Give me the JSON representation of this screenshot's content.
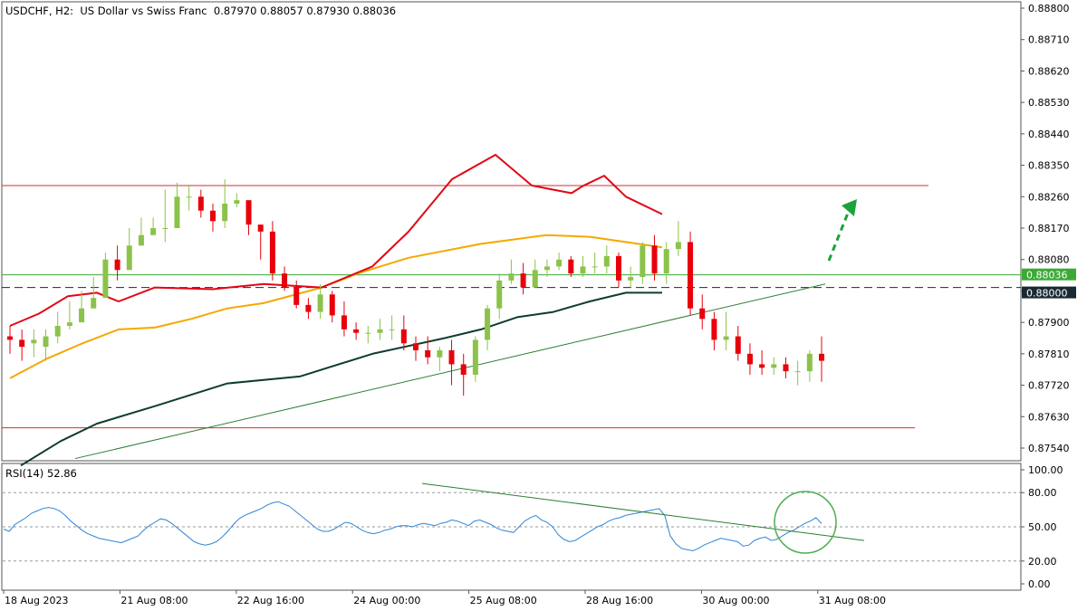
{
  "header": {
    "symbol": "USDCHF, H2:",
    "description": "US Dollar vs Swiss Franc",
    "ohlc": "0.87970 0.88057 0.87930 0.88036"
  },
  "rsi_panel": {
    "label": "RSI(14) 52.86"
  },
  "colors": {
    "bull": "#8bc34a",
    "bear": "#e8000b",
    "ma_red": "#e30613",
    "ma_orange": "#f5a800",
    "ma_dark": "#0f3d2e",
    "level": "#d32f2f",
    "trend": "#2e7d32",
    "rsi": "#2f86d6",
    "bid": "#3aaa35",
    "arrow": "#1aa33a"
  },
  "chart_data": [
    {
      "type": "candlestick",
      "title": "USDCHF, H2: US Dollar vs Swiss Franc",
      "y_range": [
        0.8748,
        0.8882
      ],
      "price_ticks": [
        "0.88800",
        "0.88710",
        "0.88620",
        "0.88530",
        "0.88440",
        "0.88350",
        "0.88260",
        "0.88170",
        "0.88080",
        "0.87990",
        "0.87900",
        "0.87810",
        "0.87720",
        "0.87630",
        "0.87540"
      ],
      "time_labels": [
        "18 Aug 2023",
        "21 Aug 08:00",
        "22 Aug 16:00",
        "24 Aug 00:00",
        "25 Aug 08:00",
        "28 Aug 16:00",
        "30 Aug 00:00",
        "31 Aug 08:00"
      ],
      "current_price": "0.88036",
      "dashed_level": "0.88000",
      "horizontal_levels": [
        0.88292,
        0.87598
      ],
      "trendline": [
        {
          "bar": 18,
          "price": 0.8751
        },
        {
          "bar": 225,
          "price": 0.8801
        }
      ],
      "forecast_arrow": "up",
      "moving_averages": {
        "red": [
          [
            0,
            0.8789
          ],
          [
            8,
            0.87925
          ],
          [
            16,
            0.87975
          ],
          [
            24,
            0.87985
          ],
          [
            30,
            0.8796
          ],
          [
            40,
            0.88
          ],
          [
            56,
            0.87995
          ],
          [
            70,
            0.8801
          ],
          [
            86,
            0.88
          ],
          [
            100,
            0.8806
          ],
          [
            110,
            0.8816
          ],
          [
            122,
            0.8831
          ],
          [
            134,
            0.8838
          ],
          [
            144,
            0.88292
          ],
          [
            150,
            0.8828
          ],
          [
            155,
            0.8827
          ],
          [
            158,
            0.8829
          ],
          [
            164,
            0.8832
          ],
          [
            170,
            0.8826
          ],
          [
            180,
            0.8821
          ]
        ],
        "orange": [
          [
            0,
            0.8774
          ],
          [
            10,
            0.87795
          ],
          [
            20,
            0.8784
          ],
          [
            30,
            0.8788
          ],
          [
            40,
            0.87885
          ],
          [
            50,
            0.8791
          ],
          [
            60,
            0.8794
          ],
          [
            70,
            0.87955
          ],
          [
            86,
            0.88
          ],
          [
            96,
            0.8804
          ],
          [
            110,
            0.88085
          ],
          [
            130,
            0.88125
          ],
          [
            148,
            0.8815
          ],
          [
            160,
            0.88145
          ],
          [
            170,
            0.8813
          ],
          [
            180,
            0.88115
          ]
        ],
        "dark": [
          [
            3,
            0.8749
          ],
          [
            14,
            0.8756
          ],
          [
            24,
            0.8761
          ],
          [
            40,
            0.8766
          ],
          [
            60,
            0.87725
          ],
          [
            80,
            0.87745
          ],
          [
            100,
            0.8781
          ],
          [
            120,
            0.87855
          ],
          [
            130,
            0.8788
          ],
          [
            140,
            0.87915
          ],
          [
            150,
            0.8793
          ],
          [
            160,
            0.8796
          ],
          [
            170,
            0.87985
          ],
          [
            180,
            0.87985
          ]
        ]
      },
      "candles": [
        [
          0.8786,
          0.8785,
          0.8784,
          0.8783,
          0.8786,
          0.8789,
          0.879,
          0.8794,
          0.8797,
          0.8808,
          0.8805,
          0.8812,
          0.8815,
          0.8817,
          0.8817,
          0.8826,
          0.8826,
          0.8822,
          0.8819,
          0.8824,
          0.8825,
          0.8818
        ],
        [
          0.8785,
          0.8783,
          0.8785,
          0.8786,
          0.8789,
          0.879,
          0.8794,
          0.8797,
          0.8808,
          0.8805,
          0.8812,
          0.8815,
          0.8817,
          0.8817,
          0.8826,
          0.8826,
          0.8822,
          0.8819,
          0.8824,
          0.8825,
          0.8818,
          0.8816
        ],
        [
          0.8789,
          0.8788,
          0.8788,
          0.8788,
          0.8793,
          0.8796,
          0.8799,
          0.8803,
          0.881,
          0.8812,
          0.8817,
          0.882,
          0.882,
          0.8828,
          0.883,
          0.8829,
          0.8828,
          0.8824,
          0.8831,
          0.8827,
          0.8823,
          0.8818
        ],
        [
          0.8781,
          0.8779,
          0.878,
          0.8779,
          0.8784,
          0.8788,
          0.8791,
          0.8795,
          0.8804,
          0.8802,
          0.8809,
          0.8812,
          0.8815,
          0.8813,
          0.8823,
          0.8822,
          0.882,
          0.8816,
          0.8817,
          0.8823,
          0.8815,
          0.8808
        ]
      ],
      "candles_cont": [
        [
          0.8816,
          0.8804,
          0.88,
          0.8795,
          0.8793,
          0.8798,
          0.8792,
          0.8788,
          0.8787,
          0.8787,
          0.8788,
          0.8788,
          0.8784,
          0.8782,
          0.878,
          0.8782,
          0.8778,
          0.8775,
          0.8785,
          0.8794,
          0.8802,
          0.8804,
          0.88,
          0.8805,
          0.8806,
          0.8808,
          0.8804,
          0.8806,
          0.8806,
          0.8809,
          0.8802,
          0.8803,
          0.8812,
          0.8804,
          0.8811,
          0.8813,
          0.8794,
          0.8791,
          0.8785,
          0.8786,
          0.8781,
          0.8778,
          0.8777,
          0.8778,
          0.8776,
          0.8776,
          0.8781
        ],
        [
          0.8804,
          0.88,
          0.8795,
          0.8793,
          0.8798,
          0.8792,
          0.8788,
          0.8787,
          0.8787,
          0.8788,
          0.8788,
          0.8784,
          0.8782,
          0.878,
          0.8782,
          0.8778,
          0.8775,
          0.8785,
          0.8794,
          0.8802,
          0.8804,
          0.88,
          0.8805,
          0.8806,
          0.8808,
          0.8804,
          0.8806,
          0.8806,
          0.8809,
          0.8802,
          0.8803,
          0.8812,
          0.8804,
          0.8811,
          0.8813,
          0.8794,
          0.8791,
          0.8785,
          0.8786,
          0.8781,
          0.8778,
          0.8777,
          0.8778,
          0.8776,
          0.8776,
          0.8781,
          0.8779
        ],
        [
          0.8819,
          0.8806,
          0.8802,
          0.8797,
          0.8801,
          0.8799,
          0.8796,
          0.879,
          0.8789,
          0.8791,
          0.8792,
          0.8792,
          0.8786,
          0.8786,
          0.8783,
          0.8785,
          0.8781,
          0.8786,
          0.8795,
          0.8804,
          0.8808,
          0.8807,
          0.8808,
          0.8808,
          0.881,
          0.8809,
          0.8809,
          0.881,
          0.8812,
          0.881,
          0.8806,
          0.8813,
          0.8815,
          0.8813,
          0.8819,
          0.8816,
          0.8798,
          0.8793,
          0.8793,
          0.8789,
          0.8784,
          0.8782,
          0.878,
          0.878,
          0.8779,
          0.8782,
          0.8786
        ],
        [
          0.8802,
          0.8799,
          0.8794,
          0.8791,
          0.8791,
          0.879,
          0.8786,
          0.8785,
          0.8784,
          0.8785,
          0.8785,
          0.8782,
          0.8779,
          0.8778,
          0.8776,
          0.8772,
          0.8769,
          0.8773,
          0.8782,
          0.8791,
          0.8801,
          0.8798,
          0.88,
          0.8803,
          0.8805,
          0.8803,
          0.8803,
          0.8804,
          0.8804,
          0.88,
          0.88,
          0.8801,
          0.8802,
          0.8801,
          0.8809,
          0.8792,
          0.8788,
          0.8782,
          0.8782,
          0.8779,
          0.8775,
          0.8775,
          0.8775,
          0.8774,
          0.8772,
          0.8773,
          0.8773
        ]
      ]
    },
    {
      "type": "line",
      "title": "RSI(14) 52.86",
      "y_range": [
        0,
        100
      ],
      "y_ticks": [
        "100.00",
        "80.00",
        "50.00",
        "20.00",
        "0.00"
      ],
      "levels": [
        80,
        50,
        20
      ],
      "last_value": 52.86,
      "values": [
        48,
        46,
        52,
        55,
        58,
        62,
        64,
        66,
        67,
        66,
        64,
        60,
        55,
        51,
        47,
        44,
        42,
        40,
        39,
        38,
        37,
        36,
        38,
        40,
        42,
        47,
        51,
        54,
        57,
        56,
        53,
        49,
        45,
        41,
        37,
        35,
        34,
        35,
        37,
        41,
        46,
        52,
        57,
        60,
        62,
        64,
        66,
        69,
        71,
        72,
        70,
        68,
        64,
        60,
        56,
        52,
        48,
        46,
        46,
        48,
        51,
        54,
        53,
        50,
        47,
        45,
        44,
        45,
        47,
        48,
        50,
        51,
        51,
        50,
        52,
        53,
        52,
        51,
        53,
        54,
        56,
        55,
        53,
        51,
        55,
        56,
        54,
        52,
        49,
        47,
        46,
        45,
        50,
        55,
        58,
        60,
        56,
        54,
        50,
        43,
        39,
        37,
        38,
        41,
        44,
        47,
        50,
        52,
        55,
        57,
        58,
        60,
        61,
        62,
        63,
        64,
        65,
        66,
        60,
        42,
        35,
        31,
        30,
        29,
        31,
        34,
        36,
        38,
        40,
        39,
        38,
        37,
        33,
        34,
        38,
        40,
        41,
        38,
        39,
        42,
        45,
        47,
        50,
        53,
        55,
        58,
        52.86
      ],
      "trendline": [
        {
          "bar": 110,
          "value": 88
        },
        {
          "bar": 224,
          "value": 38
        }
      ]
    }
  ]
}
